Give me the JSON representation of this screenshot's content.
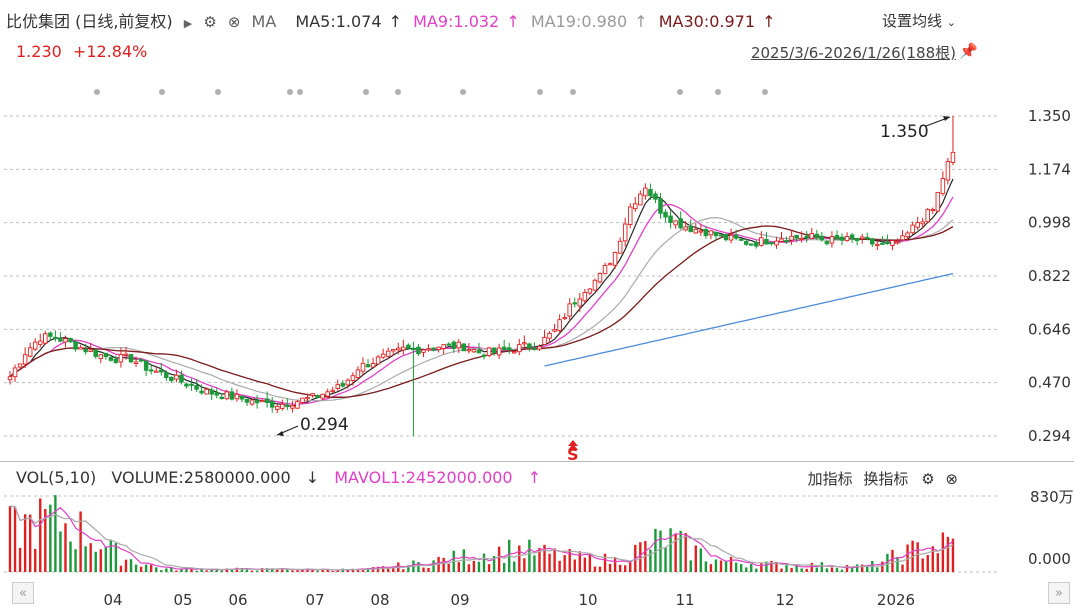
{
  "header": {
    "stock_name": "比优集团 (日线,前复权)",
    "ma_label": "MA",
    "ma5": "MA5:1.074",
    "ma9": "MA9:1.032",
    "ma19": "MA19:0.980",
    "ma30": "MA30:0.971",
    "up_arrow": "↑",
    "settings_label": "设置均线",
    "price": "1.230",
    "change_pct": "+12.84%",
    "date_range": "2025/3/6-2026/1/26(188根)"
  },
  "volume_panel": {
    "vol_label": "VOL(5,10)",
    "volume": "VOLUME:2580000.000",
    "volume_arrow": "↓",
    "mavol": "MAVOL1:2452000.000",
    "mavol_arrow": "↑",
    "add_indicator": "加指标",
    "switch_indicator": "换指标",
    "y_top": "830万",
    "y_zero": "0.000"
  },
  "colors": {
    "up": "#e02020",
    "down": "#1a9a3a",
    "ma5": "#222222",
    "ma9": "#e040c8",
    "ma19": "#aaaaaa",
    "ma30": "#7a1a1a",
    "long_ma": "#4a8ad8",
    "grid": "#bfbfbf"
  },
  "chart_data": {
    "type": "candlestick",
    "y_ticks": [
      "1.350",
      "1.174",
      "0.998",
      "0.822",
      "0.646",
      "0.470",
      "0.294"
    ],
    "y_range": [
      0.294,
      1.35
    ],
    "x_labels": [
      "04",
      "05",
      "06",
      "07",
      "08",
      "09",
      "10",
      "11",
      "12",
      "2026"
    ],
    "annotations": {
      "high": "1.350",
      "low": "0.294",
      "marker": "S"
    },
    "close_path": [
      [
        0,
        0.49
      ],
      [
        3,
        0.57
      ],
      [
        6,
        0.62
      ],
      [
        9,
        0.62
      ],
      [
        12,
        0.6
      ],
      [
        15,
        0.58
      ],
      [
        18,
        0.56
      ],
      [
        21,
        0.55
      ],
      [
        24,
        0.55
      ],
      [
        27,
        0.52
      ],
      [
        30,
        0.5
      ],
      [
        33,
        0.48
      ],
      [
        36,
        0.46
      ],
      [
        39,
        0.44
      ],
      [
        42,
        0.43
      ],
      [
        45,
        0.42
      ],
      [
        48,
        0.41
      ],
      [
        51,
        0.4
      ],
      [
        54,
        0.4
      ],
      [
        57,
        0.41
      ],
      [
        60,
        0.42
      ],
      [
        63,
        0.44
      ],
      [
        66,
        0.46
      ],
      [
        69,
        0.52
      ],
      [
        72,
        0.54
      ],
      [
        75,
        0.56
      ],
      [
        78,
        0.58
      ],
      [
        81,
        0.58
      ],
      [
        84,
        0.59
      ],
      [
        87,
        0.59
      ],
      [
        90,
        0.59
      ],
      [
        93,
        0.57
      ],
      [
        96,
        0.57
      ],
      [
        99,
        0.58
      ],
      [
        102,
        0.59
      ],
      [
        105,
        0.6
      ],
      [
        108,
        0.64
      ],
      [
        111,
        0.72
      ],
      [
        114,
        0.78
      ],
      [
        117,
        0.82
      ],
      [
        120,
        0.9
      ],
      [
        123,
        1.05
      ],
      [
        126,
        1.12
      ],
      [
        129,
        1.04
      ],
      [
        132,
        1.0
      ],
      [
        135,
        0.98
      ],
      [
        138,
        0.97
      ],
      [
        141,
        0.95
      ],
      [
        144,
        0.94
      ],
      [
        147,
        0.93
      ],
      [
        150,
        0.94
      ],
      [
        153,
        0.95
      ],
      [
        156,
        0.95
      ],
      [
        159,
        0.95
      ],
      [
        162,
        0.94
      ],
      [
        165,
        0.94
      ],
      [
        168,
        0.94
      ],
      [
        171,
        0.93
      ],
      [
        174,
        0.92
      ],
      [
        177,
        0.94
      ],
      [
        180,
        1.0
      ],
      [
        183,
        1.04
      ],
      [
        186,
        1.2
      ],
      [
        187,
        1.23
      ]
    ]
  }
}
